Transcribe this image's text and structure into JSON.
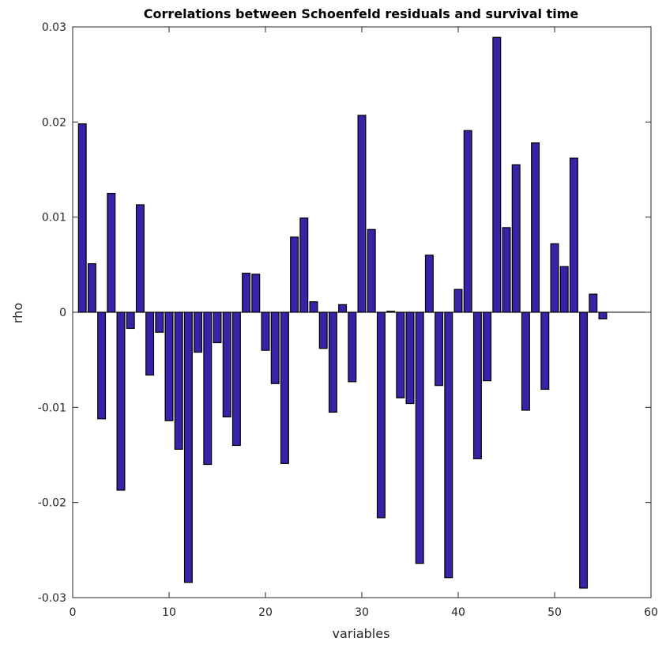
{
  "chart_data": {
    "type": "bar",
    "title": "Correlations between Schoenfeld residuals and survival time",
    "xlabel": "variables",
    "ylabel": "rho",
    "xlim": [
      0,
      60
    ],
    "ylim": [
      -0.03,
      0.03
    ],
    "xticks": [
      0,
      10,
      20,
      30,
      40,
      50,
      60
    ],
    "xtick_labels": [
      "0",
      "10",
      "20",
      "30",
      "40",
      "50",
      "60"
    ],
    "yticks": [
      -0.03,
      -0.02,
      -0.01,
      0,
      0.01,
      0.02,
      0.03
    ],
    "ytick_labels": [
      "-0.03",
      "-0.02",
      "-0.01",
      "0",
      "0.01",
      "0.02",
      "0.03"
    ],
    "grid": false,
    "bar_color": "#3a22a8",
    "x": [
      1,
      2,
      3,
      4,
      5,
      6,
      7,
      8,
      9,
      10,
      11,
      12,
      13,
      14,
      15,
      16,
      17,
      18,
      19,
      20,
      21,
      22,
      23,
      24,
      25,
      26,
      27,
      28,
      29,
      30,
      31,
      32,
      33,
      34,
      35,
      36,
      37,
      38,
      39,
      40,
      41,
      42,
      43,
      44,
      45,
      46,
      47,
      48,
      49,
      50,
      51,
      52,
      53,
      54,
      55
    ],
    "values": [
      0.0198,
      0.0051,
      -0.0112,
      0.0125,
      -0.0187,
      -0.0017,
      0.0113,
      -0.0066,
      -0.0021,
      -0.0114,
      -0.0144,
      -0.0284,
      -0.0042,
      -0.016,
      -0.0032,
      -0.011,
      -0.014,
      0.0041,
      0.004,
      -0.004,
      -0.0075,
      -0.0159,
      0.0079,
      0.0099,
      0.0011,
      -0.0038,
      -0.0105,
      0.0008,
      -0.0073,
      0.0207,
      0.0087,
      -0.0216,
      0.0001,
      -0.009,
      -0.0096,
      -0.0264,
      0.006,
      -0.0077,
      -0.0279,
      0.0024,
      0.0191,
      -0.0154,
      -0.0072,
      0.0289,
      0.0089,
      0.0155,
      -0.0103,
      0.0178,
      -0.0081,
      0.0072,
      0.0048,
      0.0162,
      -0.029,
      0.0019,
      -0.0007
    ]
  }
}
